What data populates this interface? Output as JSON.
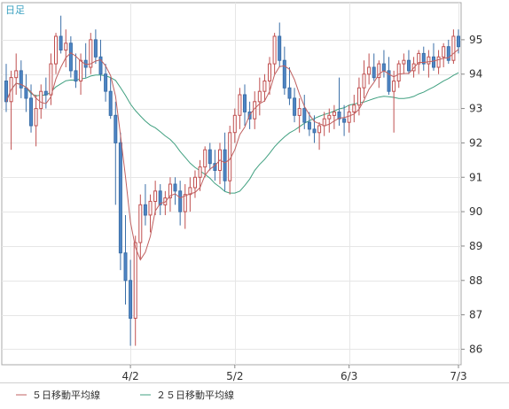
{
  "chart_data": {
    "type": "candlestick",
    "label_daily": "日足",
    "x_ticks": [
      "4/2",
      "5/2",
      "6/3",
      "7/3"
    ],
    "y_ticks": [
      86,
      87,
      88,
      89,
      90,
      91,
      92,
      93,
      94,
      95
    ],
    "ylim": [
      85.6,
      95.95
    ],
    "legend": [
      {
        "name": "５日移動平均線",
        "color": "#c06060"
      },
      {
        "name": "２５日移動平均線",
        "color": "#40a080"
      }
    ],
    "up_color": "#ffffff",
    "down_color": "#4f86c6",
    "grid": true,
    "candles": [
      [
        93.8,
        94.3,
        92.9,
        93.2
      ],
      [
        93.2,
        94.1,
        91.8,
        93.9
      ],
      [
        93.9,
        94.6,
        93.4,
        94.1
      ],
      [
        94.1,
        94.4,
        93.3,
        93.6
      ],
      [
        93.6,
        94.0,
        92.9,
        93.3
      ],
      [
        93.3,
        93.7,
        92.3,
        92.5
      ],
      [
        92.5,
        93.4,
        91.9,
        93.0
      ],
      [
        93.0,
        93.7,
        92.7,
        93.5
      ],
      [
        93.5,
        93.9,
        93.0,
        93.4
      ],
      [
        93.4,
        94.6,
        93.1,
        94.3
      ],
      [
        94.3,
        95.2,
        94.0,
        95.1
      ],
      [
        95.1,
        95.7,
        94.6,
        94.7
      ],
      [
        94.7,
        95.3,
        94.2,
        94.9
      ],
      [
        94.9,
        95.1,
        93.9,
        94.1
      ],
      [
        94.1,
        94.6,
        93.6,
        93.8
      ],
      [
        93.8,
        94.6,
        93.4,
        94.4
      ],
      [
        94.4,
        94.9,
        93.9,
        94.2
      ],
      [
        94.2,
        95.2,
        94.0,
        95.0
      ],
      [
        95.0,
        95.3,
        94.3,
        94.5
      ],
      [
        94.5,
        95.0,
        93.8,
        94.0
      ],
      [
        94.0,
        94.3,
        93.2,
        93.5
      ],
      [
        93.5,
        93.9,
        92.7,
        92.8
      ],
      [
        92.8,
        93.2,
        90.2,
        92.0
      ],
      [
        92.0,
        92.3,
        88.3,
        88.8
      ],
      [
        88.8,
        89.9,
        87.3,
        88.0
      ],
      [
        88.0,
        88.6,
        86.1,
        86.9
      ],
      [
        86.9,
        89.3,
        86.1,
        89.1
      ],
      [
        89.1,
        90.5,
        88.6,
        90.2
      ],
      [
        90.2,
        90.8,
        89.6,
        89.9
      ],
      [
        89.9,
        90.5,
        89.4,
        90.3
      ],
      [
        90.3,
        90.9,
        89.9,
        90.6
      ],
      [
        90.6,
        90.8,
        89.9,
        90.2
      ],
      [
        90.2,
        90.6,
        89.9,
        90.4
      ],
      [
        90.4,
        91.0,
        90.0,
        90.8
      ],
      [
        90.8,
        91.0,
        90.2,
        90.6
      ],
      [
        90.6,
        90.9,
        89.6,
        90.0
      ],
      [
        90.0,
        90.8,
        89.5,
        90.5
      ],
      [
        90.5,
        91.0,
        90.0,
        90.7
      ],
      [
        90.7,
        91.2,
        90.4,
        91.0
      ],
      [
        91.0,
        91.5,
        90.6,
        91.3
      ],
      [
        91.3,
        91.9,
        91.0,
        91.8
      ],
      [
        91.8,
        92.0,
        91.2,
        91.4
      ],
      [
        91.4,
        91.8,
        90.9,
        91.2
      ],
      [
        91.2,
        92.0,
        90.8,
        91.8
      ],
      [
        91.8,
        92.3,
        90.6,
        90.9
      ],
      [
        90.9,
        92.5,
        90.5,
        92.3
      ],
      [
        92.3,
        93.0,
        92.0,
        92.8
      ],
      [
        92.8,
        93.6,
        92.4,
        93.4
      ],
      [
        93.4,
        93.7,
        92.5,
        92.9
      ],
      [
        92.9,
        93.2,
        92.4,
        92.7
      ],
      [
        92.7,
        93.5,
        92.4,
        93.2
      ],
      [
        93.2,
        93.9,
        92.8,
        93.5
      ],
      [
        93.5,
        94.0,
        93.2,
        93.8
      ],
      [
        93.8,
        94.5,
        93.4,
        94.3
      ],
      [
        94.3,
        95.2,
        94.0,
        95.1
      ],
      [
        95.1,
        95.5,
        94.2,
        94.4
      ],
      [
        94.4,
        94.8,
        93.4,
        93.6
      ],
      [
        93.6,
        94.2,
        93.1,
        93.3
      ],
      [
        93.3,
        93.6,
        92.6,
        92.8
      ],
      [
        92.8,
        93.3,
        92.3,
        93.0
      ],
      [
        93.0,
        93.4,
        92.4,
        92.6
      ],
      [
        92.6,
        92.9,
        92.2,
        92.4
      ],
      [
        92.4,
        92.8,
        92.0,
        92.3
      ],
      [
        92.3,
        92.6,
        91.8,
        92.5
      ],
      [
        92.5,
        92.9,
        92.2,
        92.7
      ],
      [
        92.7,
        93.0,
        92.3,
        92.8
      ],
      [
        92.8,
        93.1,
        92.4,
        92.9
      ],
      [
        92.9,
        93.9,
        92.5,
        92.7
      ],
      [
        92.7,
        93.1,
        92.2,
        92.6
      ],
      [
        92.6,
        93.1,
        92.3,
        92.9
      ],
      [
        92.9,
        93.4,
        92.6,
        93.1
      ],
      [
        93.1,
        93.9,
        92.8,
        93.6
      ],
      [
        93.6,
        94.4,
        93.3,
        94.0
      ],
      [
        94.0,
        94.6,
        93.7,
        94.2
      ],
      [
        94.2,
        94.6,
        93.8,
        93.9
      ],
      [
        93.9,
        94.4,
        93.6,
        94.3
      ],
      [
        94.3,
        94.7,
        93.9,
        94.1
      ],
      [
        94.1,
        94.5,
        93.4,
        93.5
      ],
      [
        93.5,
        94.1,
        92.3,
        93.8
      ],
      [
        93.8,
        94.4,
        93.6,
        94.3
      ],
      [
        94.3,
        94.6,
        94.0,
        94.4
      ],
      [
        94.4,
        94.7,
        94.0,
        94.1
      ],
      [
        94.1,
        94.5,
        93.9,
        94.3
      ],
      [
        94.3,
        94.7,
        94.0,
        94.6
      ],
      [
        94.6,
        94.8,
        94.1,
        94.3
      ],
      [
        94.3,
        94.7,
        93.9,
        94.5
      ],
      [
        94.5,
        94.9,
        94.1,
        94.2
      ],
      [
        94.2,
        94.7,
        94.0,
        94.5
      ],
      [
        94.5,
        94.9,
        94.2,
        94.8
      ],
      [
        94.8,
        95.0,
        94.3,
        94.4
      ],
      [
        94.4,
        95.3,
        94.3,
        95.1
      ],
      [
        95.1,
        95.3,
        94.6,
        94.8
      ]
    ]
  }
}
